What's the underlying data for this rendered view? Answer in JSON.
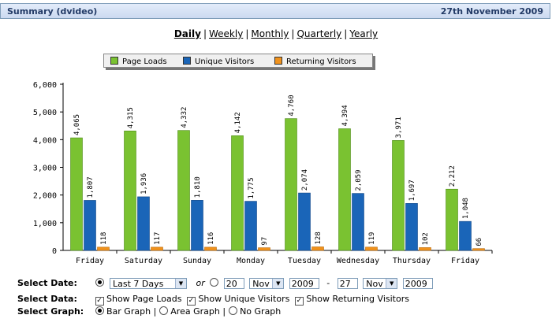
{
  "header": {
    "title": "Summary (dvideo)",
    "date": "27th November 2009"
  },
  "periods": [
    "Daily",
    "Weekly",
    "Monthly",
    "Quarterly",
    "Yearly"
  ],
  "active_period": "Daily",
  "colors": {
    "page_loads": "#7ac231",
    "unique": "#1a65b8",
    "returning": "#f0921d"
  },
  "chart_data": {
    "type": "bar",
    "categories": [
      "Friday",
      "Saturday",
      "Sunday",
      "Monday",
      "Tuesday",
      "Wednesday",
      "Thursday",
      "Friday"
    ],
    "series": [
      {
        "name": "Page Loads",
        "values": [
          4065,
          4315,
          4332,
          4142,
          4760,
          4394,
          3971,
          2212
        ]
      },
      {
        "name": "Unique Visitors",
        "values": [
          1807,
          1936,
          1810,
          1775,
          2074,
          2059,
          1697,
          1048
        ]
      },
      {
        "name": "Returning Visitors",
        "values": [
          118,
          117,
          116,
          97,
          128,
          119,
          102,
          66
        ]
      }
    ],
    "ylim": [
      0,
      6000
    ],
    "yticks": [
      "0",
      "1,000",
      "2,000",
      "3,000",
      "4,000",
      "5,000",
      "6,000"
    ],
    "legend": "top-center",
    "grid": false
  },
  "controls": {
    "select_date_label": "Select Date:",
    "range_option": "Last 7 Days",
    "or_text": "or",
    "from_day": "20",
    "from_month": "Nov",
    "from_year": "2009",
    "dash": "-",
    "to_day": "27",
    "to_month": "Nov",
    "to_year": "2009",
    "select_data_label": "Select Data:",
    "show_page_loads": "Show Page Loads",
    "show_unique": "Show Unique Visitors",
    "show_returning": "Show Returning Visitors",
    "select_graph_label": "Select Graph:",
    "bar_graph": "Bar Graph",
    "area_graph": "Area Graph",
    "no_graph": "No Graph",
    "pipe": "|"
  }
}
